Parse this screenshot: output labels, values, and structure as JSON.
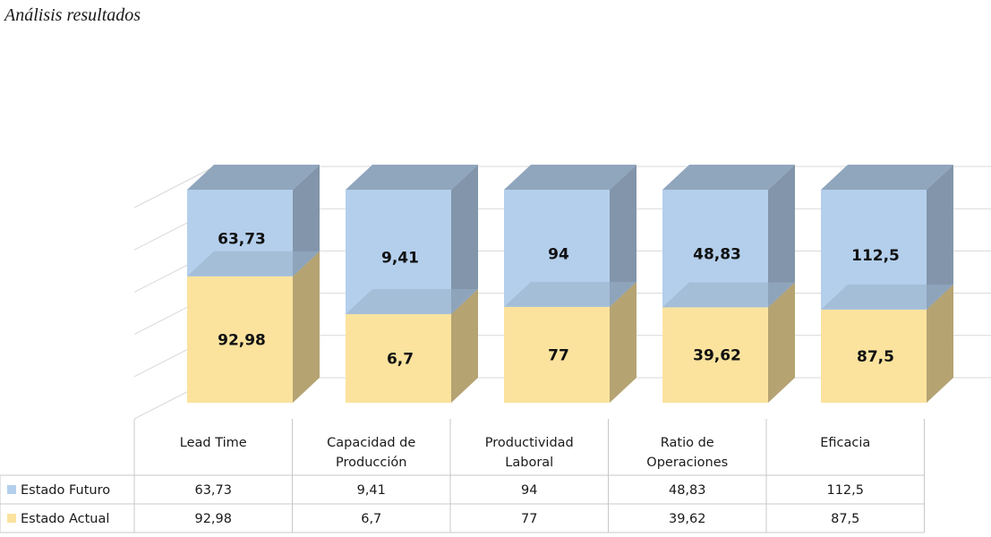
{
  "page_title": "Análisis resultados",
  "colors": {
    "estado_futuro": "#b4cfec",
    "estado_actual": "#fbe39e",
    "grid": "#d9d9d9",
    "table_border": "#c8c8c8"
  },
  "chart_data": {
    "type": "bar",
    "stacked": true,
    "three_d": true,
    "categories": [
      "Lead Time",
      "Capacidad de Producción",
      "Productividad Laboral",
      "Ratio de Operaciones",
      "Eficacia"
    ],
    "category_lines": [
      [
        "Lead Time"
      ],
      [
        "Capacidad de",
        "Producción"
      ],
      [
        "Productividad",
        "Laboral"
      ],
      [
        "Ratio de",
        "Operaciones"
      ],
      [
        "Eficacia"
      ]
    ],
    "normalized_100_percent": true,
    "grid": true,
    "legend_placement": "data-table",
    "series": [
      {
        "name": "Estado Futuro",
        "values": [
          63.73,
          9.41,
          94,
          48.83,
          112.5
        ],
        "labels": [
          "63,73",
          "9,41",
          "94",
          "48,83",
          "112,5"
        ]
      },
      {
        "name": "Estado Actual",
        "values": [
          92.98,
          6.7,
          77,
          39.62,
          87.5
        ],
        "labels": [
          "92,98",
          "6,7",
          "77",
          "39,62",
          "87,5"
        ]
      }
    ]
  }
}
